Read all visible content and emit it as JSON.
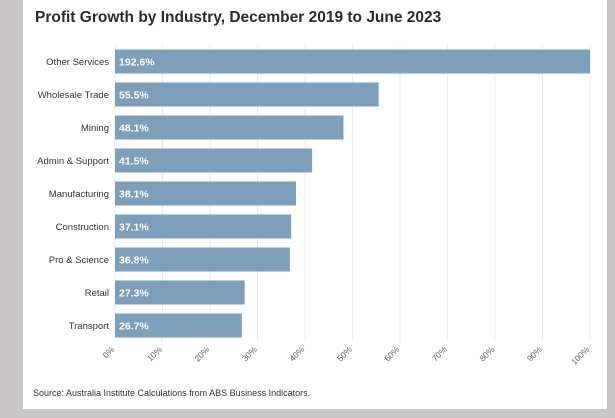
{
  "chart_data": {
    "type": "bar",
    "orientation": "horizontal",
    "title": "Profit Growth by Industry, December 2019 to June 2023",
    "categories": [
      "Other Services",
      "Wholesale Trade",
      "Mining",
      "Admin & Support",
      "Manufacturing",
      "Construction",
      "Pro & Science",
      "Retail",
      "Transport"
    ],
    "values": [
      192.6,
      55.5,
      48.1,
      41.5,
      38.1,
      37.1,
      36.8,
      27.3,
      26.7
    ],
    "value_labels": [
      "192.6%",
      "55.5%",
      "48.1%",
      "41.5%",
      "38.1%",
      "37.1%",
      "36.8%",
      "27.3%",
      "26.7%"
    ],
    "xlim": [
      0,
      100
    ],
    "x_ticks": [
      0,
      10,
      20,
      30,
      40,
      50,
      60,
      70,
      80,
      90,
      100
    ],
    "x_tick_labels": [
      "0%",
      "10%",
      "20%",
      "30%",
      "40%",
      "50%",
      "60%",
      "70%",
      "80%",
      "90%",
      "100%"
    ],
    "xlabel": "",
    "ylabel": "",
    "bar_color": "#7d9fba",
    "grid": true,
    "source": "Source: Australia Institute Calculations from ABS Business Indicators."
  }
}
